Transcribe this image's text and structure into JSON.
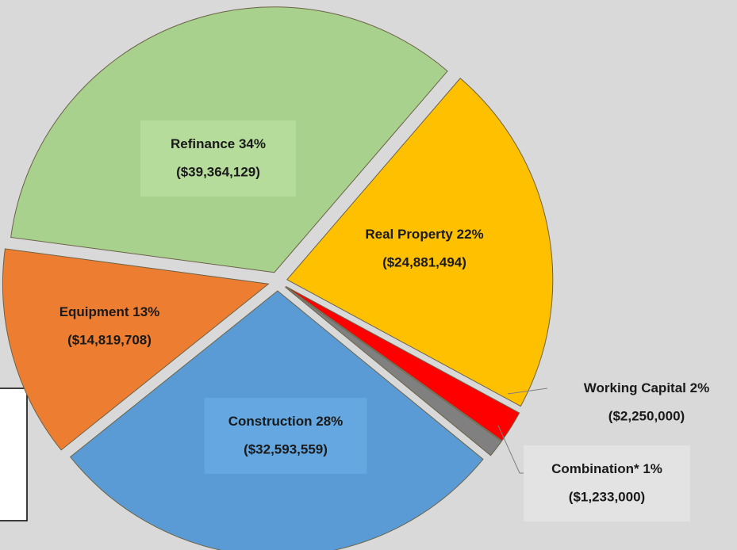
{
  "chart_data": {
    "type": "pie",
    "categories": [
      "Refinance",
      "Real Property",
      "Working Capital",
      "Combination*",
      "Construction",
      "Equipment"
    ],
    "values": [
      39364129,
      24881494,
      2250000,
      1233000,
      32593559,
      14819708
    ],
    "value_labels": [
      "($39,364,129)",
      "($24,881,494)",
      "($2,250,000)",
      "($1,233,000)",
      "($32,593,559)",
      "($14,819,708)"
    ],
    "percents": [
      34,
      22,
      2,
      1,
      28,
      13
    ],
    "percent_labels": [
      "34%",
      "22%",
      "2%",
      "1%",
      "28%",
      "13%"
    ],
    "colors": [
      "#a9d18e",
      "#ffc000",
      "#ff0000",
      "#808080",
      "#5b9bd5",
      "#ed7d31"
    ]
  }
}
